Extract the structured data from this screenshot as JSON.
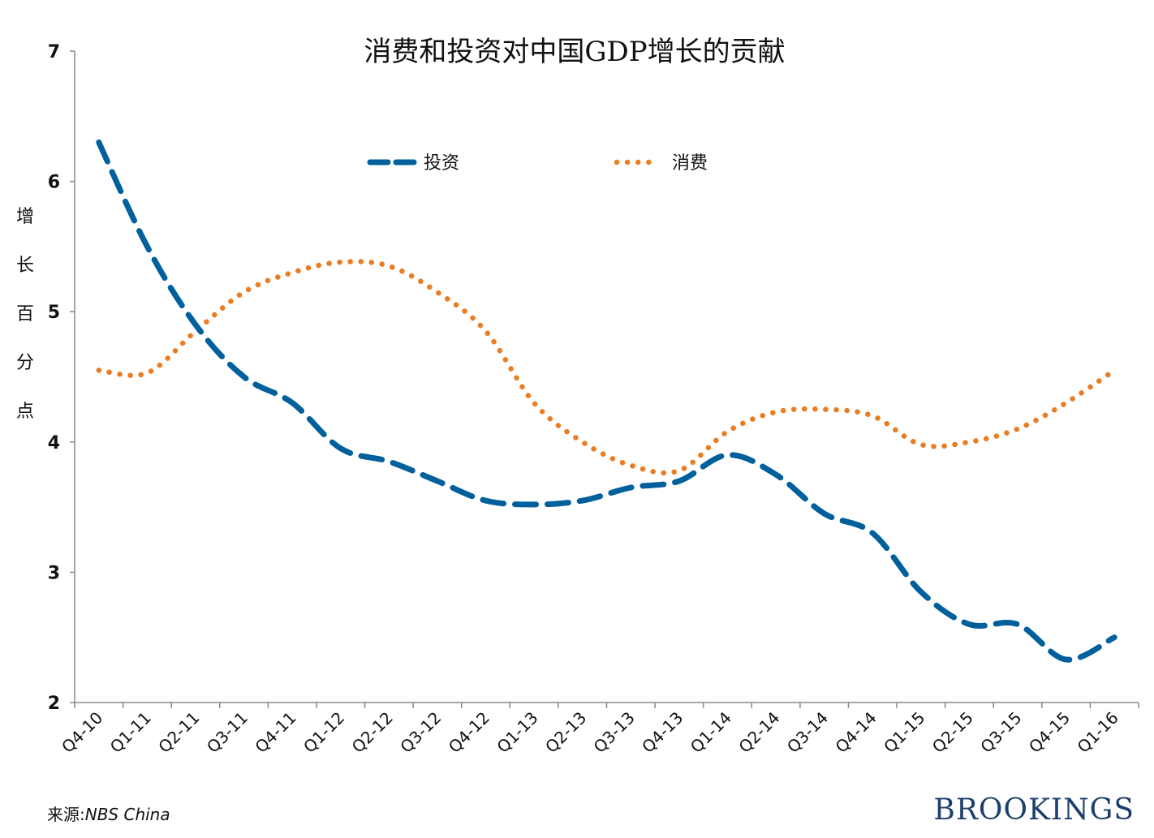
{
  "chart_data": {
    "type": "line",
    "title": "消费和投资对中国GDP增长的贡献",
    "ylabel": "增长百分点",
    "xlabel": "",
    "ylim": [
      2,
      7
    ],
    "yticks": [
      2,
      3,
      4,
      5,
      6,
      7
    ],
    "categories": [
      "Q4-10",
      "Q1-11",
      "Q2-11",
      "Q3-11",
      "Q4-11",
      "Q1-12",
      "Q2-12",
      "Q3-12",
      "Q4-12",
      "Q1-13",
      "Q2-13",
      "Q3-13",
      "Q4-13",
      "Q1-14",
      "Q2-14",
      "Q3-14",
      "Q4-14",
      "Q1-15",
      "Q2-15",
      "Q3-15",
      "Q4-15",
      "Q1-16"
    ],
    "series": [
      {
        "name": "投资",
        "color": "#00609c",
        "style": "dashed",
        "values": [
          6.3,
          5.5,
          4.9,
          4.5,
          4.3,
          3.95,
          3.85,
          3.7,
          3.55,
          3.52,
          3.55,
          3.65,
          3.7,
          3.9,
          3.75,
          3.45,
          3.3,
          2.85,
          2.6,
          2.6,
          2.33,
          2.5
        ]
      },
      {
        "name": "消费",
        "color": "#e97d24",
        "style": "dotted",
        "values": [
          4.55,
          4.53,
          4.85,
          5.15,
          5.3,
          5.38,
          5.35,
          5.15,
          4.85,
          4.3,
          4.0,
          3.82,
          3.78,
          4.08,
          4.23,
          4.25,
          4.2,
          3.98,
          4.0,
          4.1,
          4.3,
          4.55
        ]
      }
    ]
  },
  "footer": {
    "source_label": "来源:",
    "source_name": "NBS China",
    "brand": "BROOKINGS"
  }
}
